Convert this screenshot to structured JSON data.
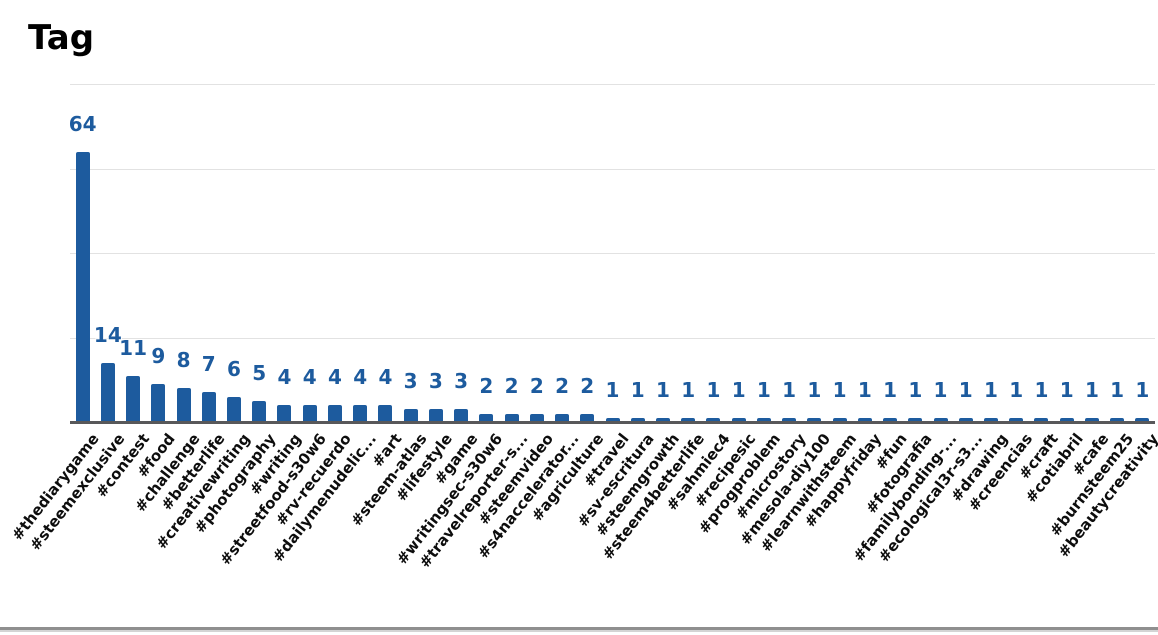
{
  "chart_data": {
    "type": "bar",
    "title": "Tag",
    "xlabel": "",
    "ylabel": "",
    "ylim": [
      0,
      80
    ],
    "gridline_step": 20,
    "grid": "horizontal-only",
    "legend": "none",
    "y_axis_tick_labels_visible": false,
    "value_labels_visible": true,
    "categories": [
      "#thediarygame",
      "#steemexclusive",
      "#contest",
      "#food",
      "#challenge",
      "#betterlife",
      "#creativewriting",
      "#photography",
      "#writing",
      "#streetfood-s30w6",
      "#rv-recuerdo",
      "#dailymenudelic...",
      "#art",
      "#steem-atlas",
      "#lifestyle",
      "#game",
      "#writingsec-s30w6",
      "#travelreporter-s...",
      "#steemvideo",
      "#s4naccelerator...",
      "#agriculture",
      "#travel",
      "#sv-escritura",
      "#steemgrowth",
      "#steem4betterlife",
      "#sahmiec4",
      "#recipesic",
      "#progproblem",
      "#microstory",
      "#mesola-diy100",
      "#learnwithsteem",
      "#happyfriday",
      "#fun",
      "#fotografia",
      "#familybonding-...",
      "#ecological3r-s3...",
      "#drawing",
      "#creencias",
      "#craft",
      "#cotiabril",
      "#cafe",
      "#burnsteem25",
      "#beautycreativity"
    ],
    "values": [
      64,
      14,
      11,
      9,
      8,
      7,
      6,
      5,
      4,
      4,
      4,
      4,
      4,
      3,
      3,
      3,
      2,
      2,
      2,
      2,
      2,
      1,
      1,
      1,
      1,
      1,
      1,
      1,
      1,
      1,
      1,
      1,
      1,
      1,
      1,
      1,
      1,
      1,
      1,
      1,
      1,
      1,
      1
    ],
    "colors": {
      "bar": "#1d5b9e",
      "value_label": "#1d5b9e",
      "gridline": "#e2e2e2",
      "axis_line": "#58585a",
      "title_text": "#000000",
      "x_label_text": "#0d0d0d",
      "bottom_divider": "#8f8f8f"
    }
  }
}
